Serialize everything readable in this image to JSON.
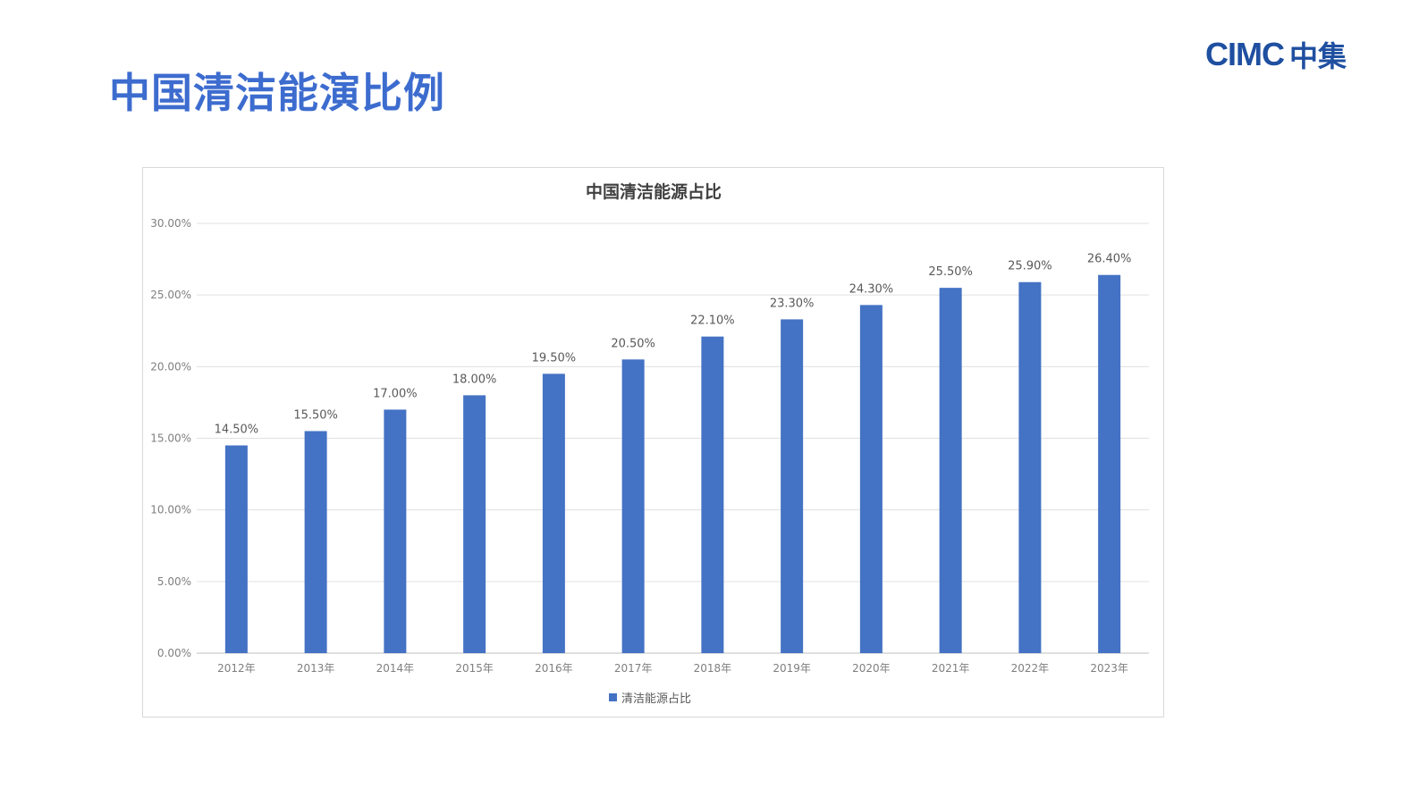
{
  "slide": {
    "title": "中国清洁能演比例"
  },
  "logo": {
    "latin": "CIMC",
    "cjk": "中集"
  },
  "colors": {
    "title": "#3d6ccf",
    "bar": "#4472c4",
    "grid": "#e0e0e0"
  },
  "chart_data": {
    "type": "bar",
    "title": "中国清洁能源占比",
    "xlabel": "",
    "ylabel": "",
    "categories": [
      "2012年",
      "2013年",
      "2014年",
      "2015年",
      "2016年",
      "2017年",
      "2018年",
      "2019年",
      "2020年",
      "2021年",
      "2022年",
      "2023年"
    ],
    "series": [
      {
        "name": "清洁能源占比",
        "values": [
          14.5,
          15.5,
          17.0,
          18.0,
          19.5,
          20.5,
          22.1,
          23.3,
          24.3,
          25.5,
          25.9,
          26.4
        ],
        "labels": [
          "14.50%",
          "15.50%",
          "17.00%",
          "18.00%",
          "19.50%",
          "20.50%",
          "22.10%",
          "23.30%",
          "24.30%",
          "25.50%",
          "25.90%",
          "26.40%"
        ]
      }
    ],
    "ylim": [
      0,
      30
    ],
    "yticks": [
      "0.00%",
      "5.00%",
      "10.00%",
      "15.00%",
      "20.00%",
      "25.00%",
      "30.00%"
    ],
    "grid": true,
    "legend": "bottom"
  }
}
